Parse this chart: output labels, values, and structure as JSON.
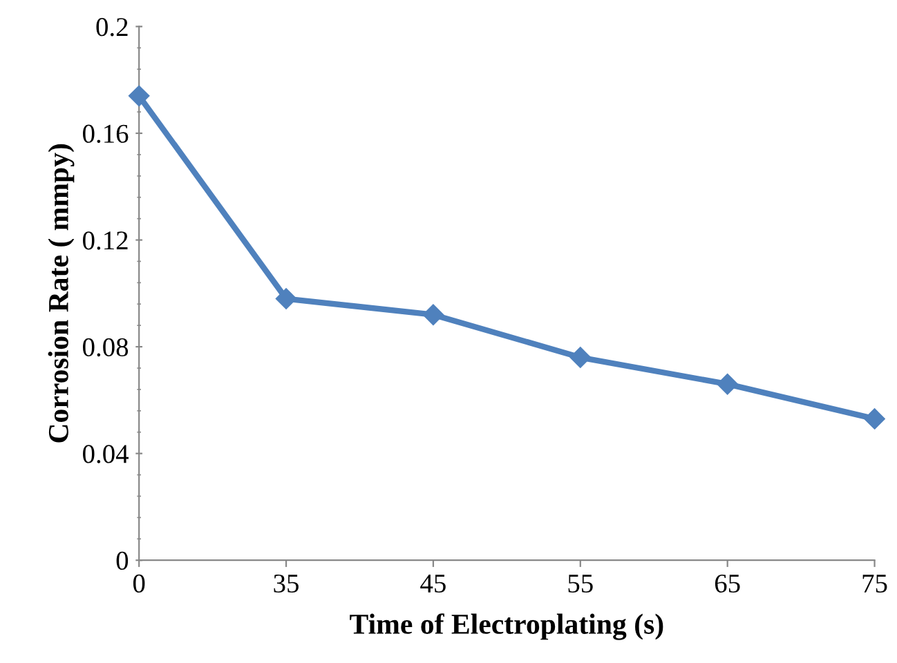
{
  "chart_data": {
    "type": "line",
    "xlabel": "Time of Electroplating (s)",
    "ylabel": "Corrosion Rate ( mmpy)",
    "categories": [
      "0",
      "35",
      "45",
      "55",
      "65",
      "75"
    ],
    "series": [
      {
        "color": "#4f81bd",
        "values": [
          0.174,
          0.098,
          0.092,
          0.076,
          0.066,
          0.053
        ]
      }
    ],
    "ylim": [
      0,
      0.2
    ],
    "yticks": [
      0,
      0.04,
      0.08,
      0.12,
      0.16,
      0.2
    ],
    "grid": false,
    "legend": false,
    "marker": "diamond",
    "line_style": "solid"
  }
}
